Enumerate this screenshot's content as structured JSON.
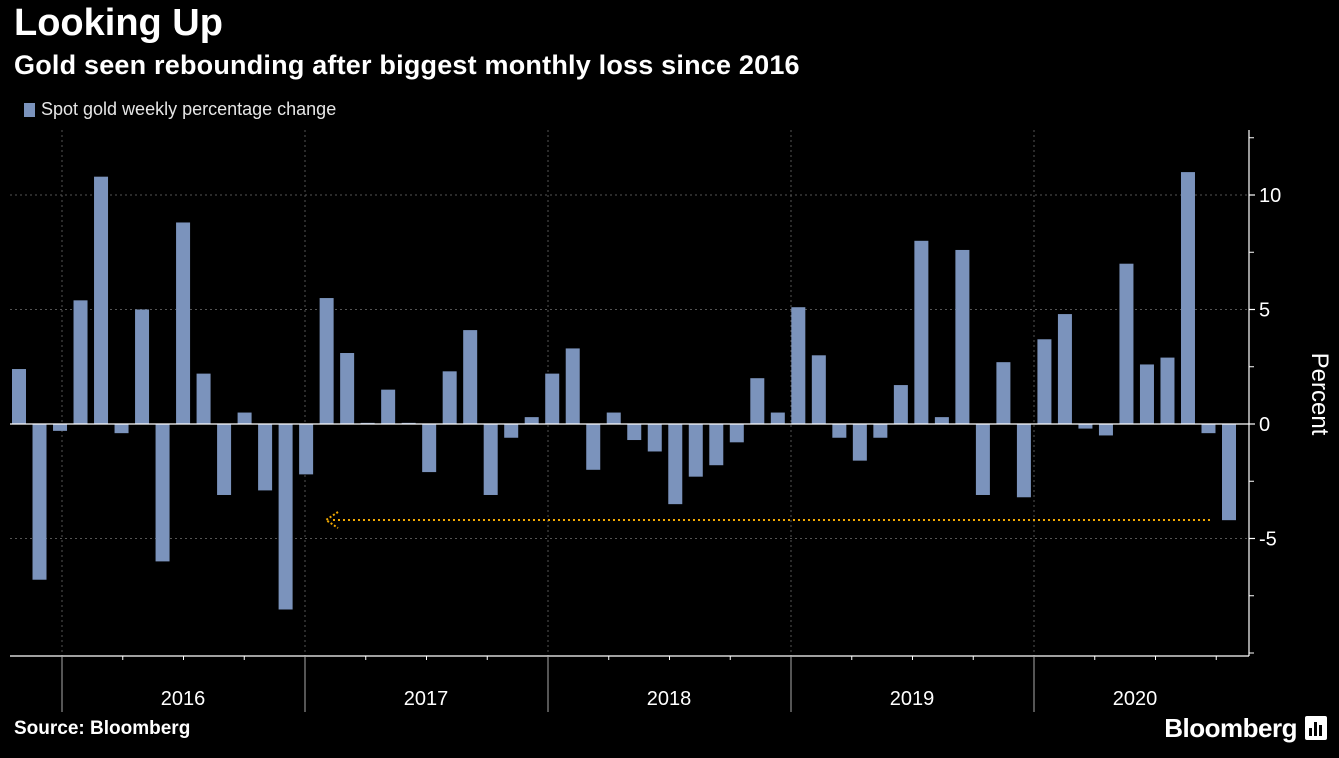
{
  "header": {
    "title": "Looking Up",
    "subtitle": "Gold seen rebounding after biggest monthly loss since 2016"
  },
  "footer": {
    "source": "Source: Bloomberg",
    "brand": "Bloomberg"
  },
  "colors": {
    "bar": "#7b93bc",
    "arrow": "#f2a900",
    "grid": "#555555"
  },
  "chart_data": {
    "type": "bar",
    "title": "Looking Up",
    "subtitle": "Gold seen rebounding after biggest monthly loss since 2016",
    "legend": [
      "Spot gold weekly percentage change"
    ],
    "ylabel": "Percent",
    "ylim": [
      -10,
      12.5
    ],
    "yticks": [
      -5,
      0,
      5,
      10
    ],
    "grid": true,
    "years": [
      "2016",
      "2017",
      "2018",
      "2019",
      "2020"
    ],
    "series": [
      {
        "name": "Spot gold weekly percentage change",
        "values": [
          2.4,
          -6.8,
          -0.3,
          5.4,
          10.8,
          -0.4,
          5.0,
          -6.0,
          8.8,
          2.2,
          -3.1,
          0.5,
          -2.9,
          -8.1,
          -2.2,
          5.5,
          3.1,
          0.05,
          1.5,
          0.05,
          -2.1,
          2.3,
          4.1,
          -3.1,
          -0.6,
          0.3,
          2.2,
          3.3,
          -2.0,
          0.5,
          -0.7,
          -1.2,
          -3.5,
          -2.3,
          -1.8,
          -0.8,
          2.0,
          0.5,
          5.1,
          3.0,
          -0.6,
          -1.6,
          -0.6,
          1.7,
          8.0,
          0.3,
          7.6,
          -3.1,
          2.7,
          -3.2,
          3.7,
          4.8,
          -0.2,
          -0.5,
          7.0,
          2.6,
          2.9,
          11.0,
          -0.4,
          -4.2
        ]
      }
    ],
    "annotation": "arrow from latest weekly loss back to comparable 2016 loss"
  }
}
